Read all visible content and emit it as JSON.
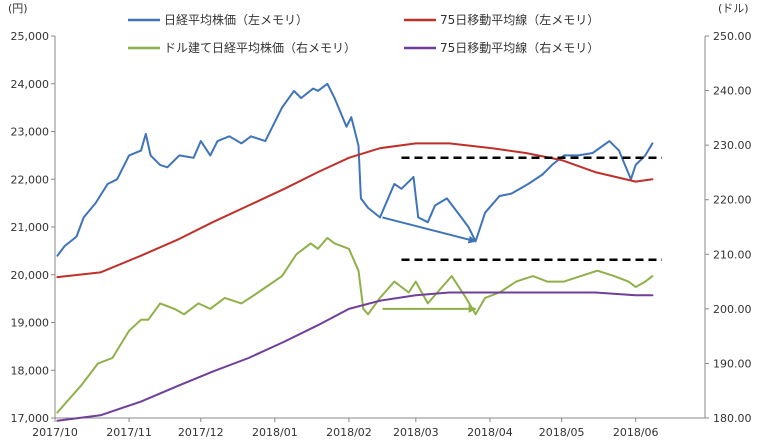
{
  "chart_data": {
    "type": "line",
    "left_unit": "(円)",
    "right_unit": "(ドル)",
    "left_axis": {
      "min": 17000,
      "max": 25000,
      "ticks": [
        17000,
        18000,
        19000,
        20000,
        21000,
        22000,
        23000,
        24000,
        25000
      ],
      "tick_labels": [
        "17,000",
        "18,000",
        "19,000",
        "20,000",
        "21,000",
        "22,000",
        "23,000",
        "24,000",
        "25,000"
      ]
    },
    "right_axis": {
      "min": 180,
      "max": 250,
      "ticks": [
        180,
        190,
        200,
        210,
        220,
        230,
        240,
        250
      ],
      "tick_labels": [
        "180.00",
        "190.00",
        "200.00",
        "210.00",
        "220.00",
        "230.00",
        "240.00",
        "250.00"
      ]
    },
    "x_axis": {
      "min": "2017-10-01",
      "max": "2018-06-30",
      "ticks": [
        "2017-10-01",
        "2017-11-01",
        "2017-12-01",
        "2018-01-01",
        "2018-02-01",
        "2018-03-01",
        "2018-04-01",
        "2018-05-01",
        "2018-06-01"
      ],
      "tick_labels": [
        "2017/10",
        "2017/11",
        "2017/12",
        "2018/01",
        "2018/02",
        "2018/03",
        "2018/04",
        "2018/05",
        "2018/06"
      ]
    },
    "legend_position": "top",
    "grid": false,
    "series": [
      {
        "name": "日経平均株価（左メモリ）",
        "axis": "left",
        "color": "#3f74b8",
        "x": [
          "2017-10-02",
          "2017-10-05",
          "2017-10-10",
          "2017-10-13",
          "2017-10-18",
          "2017-10-23",
          "2017-10-27",
          "2017-11-01",
          "2017-11-06",
          "2017-11-08",
          "2017-11-10",
          "2017-11-14",
          "2017-11-17",
          "2017-11-22",
          "2017-11-28",
          "2017-12-01",
          "2017-12-05",
          "2017-12-08",
          "2017-12-13",
          "2017-12-18",
          "2017-12-22",
          "2017-12-28",
          "2018-01-04",
          "2018-01-09",
          "2018-01-12",
          "2018-01-17",
          "2018-01-19",
          "2018-01-23",
          "2018-01-26",
          "2018-01-31",
          "2018-02-02",
          "2018-02-05",
          "2018-02-06",
          "2018-02-09",
          "2018-02-14",
          "2018-02-20",
          "2018-02-23",
          "2018-02-28",
          "2018-03-02",
          "2018-03-06",
          "2018-03-09",
          "2018-03-14",
          "2018-03-20",
          "2018-03-23",
          "2018-03-26",
          "2018-03-30",
          "2018-04-05",
          "2018-04-10",
          "2018-04-17",
          "2018-04-23",
          "2018-04-27",
          "2018-05-02",
          "2018-05-08",
          "2018-05-14",
          "2018-05-21",
          "2018-05-25",
          "2018-05-30",
          "2018-06-01",
          "2018-06-05",
          "2018-06-08"
        ],
        "y": [
          20400,
          20600,
          20800,
          21200,
          21500,
          21900,
          22000,
          22500,
          22600,
          22950,
          22500,
          22300,
          22250,
          22500,
          22450,
          22800,
          22500,
          22800,
          22900,
          22750,
          22900,
          22800,
          23500,
          23850,
          23700,
          23900,
          23850,
          24000,
          23700,
          23100,
          23300,
          22700,
          21600,
          21400,
          21200,
          21900,
          21800,
          22050,
          21200,
          21100,
          21450,
          21600,
          21200,
          21000,
          20700,
          21300,
          21650,
          21700,
          21900,
          22100,
          22300,
          22500,
          22500,
          22550,
          22800,
          22600,
          22000,
          22300,
          22500,
          22750
        ]
      },
      {
        "name": "75日移動平均線（左メモリ）",
        "axis": "left",
        "color": "#c0302b",
        "x": [
          "2017-10-02",
          "2017-10-20",
          "2017-11-06",
          "2017-11-22",
          "2017-12-06",
          "2017-12-21",
          "2018-01-05",
          "2018-01-19",
          "2018-02-01",
          "2018-02-14",
          "2018-03-01",
          "2018-03-15",
          "2018-04-02",
          "2018-04-16",
          "2018-05-01",
          "2018-05-15",
          "2018-06-01",
          "2018-06-08"
        ],
        "y": [
          19950,
          20050,
          20400,
          20750,
          21100,
          21450,
          21800,
          22150,
          22450,
          22650,
          22750,
          22750,
          22650,
          22550,
          22400,
          22150,
          21950,
          22000
        ]
      },
      {
        "name": "ドル建て日経平均株価（右メモリ）",
        "axis": "right",
        "color": "#8fb04a",
        "x": [
          "2017-10-02",
          "2017-10-06",
          "2017-10-12",
          "2017-10-19",
          "2017-10-25",
          "2017-11-01",
          "2017-11-06",
          "2017-11-09",
          "2017-11-14",
          "2017-11-20",
          "2017-11-24",
          "2017-11-30",
          "2017-12-05",
          "2017-12-11",
          "2017-12-18",
          "2017-12-25",
          "2018-01-04",
          "2018-01-10",
          "2018-01-16",
          "2018-01-19",
          "2018-01-23",
          "2018-01-26",
          "2018-02-01",
          "2018-02-05",
          "2018-02-07",
          "2018-02-09",
          "2018-02-14",
          "2018-02-20",
          "2018-02-26",
          "2018-03-01",
          "2018-03-06",
          "2018-03-12",
          "2018-03-16",
          "2018-03-22",
          "2018-03-26",
          "2018-03-30",
          "2018-04-05",
          "2018-04-12",
          "2018-04-19",
          "2018-04-25",
          "2018-05-02",
          "2018-05-09",
          "2018-05-16",
          "2018-05-23",
          "2018-05-29",
          "2018-06-01",
          "2018-06-05",
          "2018-06-08"
        ],
        "y": [
          181,
          183,
          186,
          190,
          191,
          196,
          198,
          198,
          201,
          200,
          199,
          201,
          200,
          202,
          201,
          203,
          206,
          210,
          212,
          211,
          213,
          212,
          211,
          207,
          200,
          199,
          202,
          205,
          203,
          205,
          201,
          204,
          206,
          202,
          199,
          202,
          203,
          205,
          206,
          205,
          205,
          206,
          207,
          206,
          205,
          204,
          205,
          206
        ]
      },
      {
        "name": "75日移動平均線（右メモリ）",
        "axis": "right",
        "color": "#6f3f9a",
        "x": [
          "2017-10-02",
          "2017-10-20",
          "2017-11-06",
          "2017-11-22",
          "2017-12-06",
          "2017-12-21",
          "2018-01-05",
          "2018-01-19",
          "2018-02-01",
          "2018-02-14",
          "2018-03-01",
          "2018-03-15",
          "2018-04-02",
          "2018-04-16",
          "2018-05-01",
          "2018-05-15",
          "2018-06-01",
          "2018-06-08"
        ],
        "y": [
          179.5,
          180.5,
          183,
          186,
          188.5,
          191,
          194,
          197,
          200,
          201.5,
          202.5,
          203,
          203,
          203,
          203,
          203,
          202.5,
          202.5
        ]
      }
    ],
    "annotations": {
      "dashed_lines": [
        {
          "axis": "left",
          "y": 22450,
          "x_start": "2018-02-23",
          "x_end": "2018-06-12"
        },
        {
          "axis": "right",
          "y": 209,
          "x_start": "2018-02-23",
          "x_end": "2018-06-12"
        }
      ],
      "arrows": [
        {
          "color": "#3f74b8",
          "axis": "left",
          "from": {
            "x": "2018-02-15",
            "y": 21200
          },
          "to": {
            "x": "2018-03-26",
            "y": 20700
          }
        },
        {
          "color": "#8fb04a",
          "axis": "right",
          "from": {
            "x": "2018-02-15",
            "y": 200
          },
          "to": {
            "x": "2018-03-26",
            "y": 200
          }
        }
      ]
    }
  }
}
